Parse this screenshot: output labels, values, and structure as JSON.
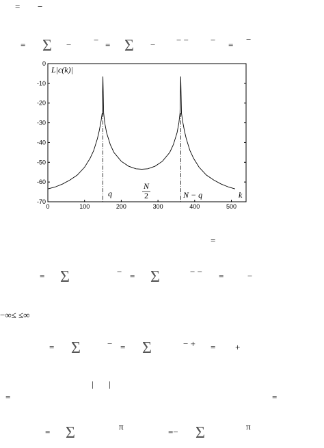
{
  "chart_data": {
    "type": "line",
    "ylabel": "L|c(k)|",
    "x": [
      0,
      20,
      40,
      60,
      80,
      100,
      115,
      125,
      135,
      140,
      145,
      148,
      150,
      152,
      155,
      160,
      170,
      180,
      200,
      220,
      240,
      256,
      272,
      292,
      312,
      332,
      342,
      352,
      357,
      360,
      362,
      364,
      367,
      372,
      377,
      387,
      397,
      412,
      432,
      452,
      472,
      492,
      510
    ],
    "series": [
      {
        "name": null,
        "color": "#000000",
        "values": [
          -63.5,
          -62.5,
          -61,
          -59,
          -56.5,
          -52.5,
          -48,
          -44,
          -38,
          -34,
          -29,
          -25,
          -6.5,
          -25,
          -30,
          -35,
          -41,
          -45,
          -49.5,
          -52,
          -53.3,
          -53.5,
          -53.3,
          -52,
          -49.5,
          -45,
          -41,
          -35,
          -30,
          -25,
          -6.5,
          -25,
          -29,
          -34,
          -38,
          -44,
          -48,
          -52.5,
          -56.5,
          -59,
          -61,
          -62.5,
          -63.5
        ]
      }
    ],
    "xlim": [
      0,
      540
    ],
    "ylim": [
      -70,
      0
    ],
    "xticks": [
      0,
      100,
      200,
      300,
      400,
      500
    ],
    "yticks": [
      0,
      -10,
      -20,
      -30,
      -40,
      -50,
      -60,
      -70
    ],
    "markers": [
      150,
      362
    ],
    "annotations": {
      "q": "q",
      "half": {
        "numerator": "N",
        "denominator": "2"
      },
      "nq": "N − q",
      "k": "k"
    }
  },
  "fragments": [
    "=",
    "−",
    "=",
    "Σ",
    "−",
    "−",
    "=",
    "Σ",
    "−",
    "− −",
    "−",
    "=",
    "−",
    "=",
    "=",
    "Σ",
    "−",
    "=",
    "Σ",
    "− −",
    "=",
    "−",
    "−∞≤   ≤∞",
    "=",
    "Σ",
    "−",
    "=",
    "Σ",
    "− +",
    "=",
    "+",
    "|",
    "|",
    "=",
    "=",
    "=",
    "Σ",
    "π",
    "=−",
    "Σ",
    "π"
  ]
}
